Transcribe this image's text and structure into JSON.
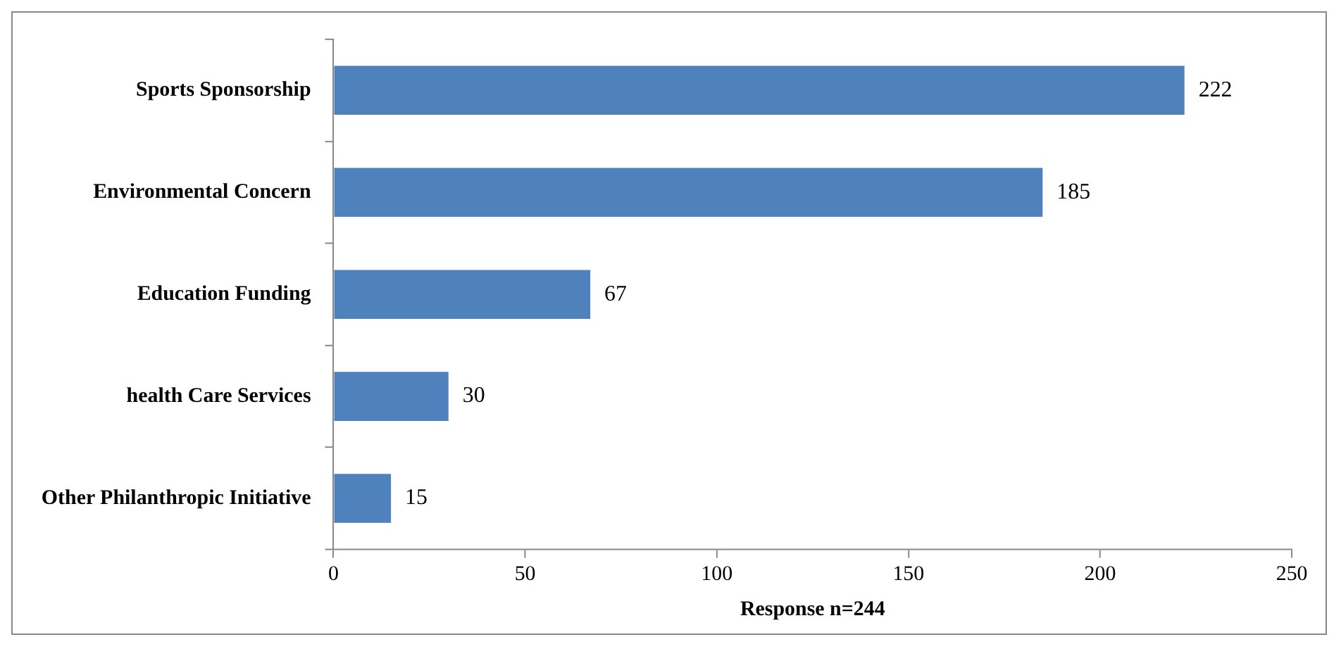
{
  "chart_data": {
    "type": "bar",
    "orientation": "horizontal",
    "xlabel": "Response n=244",
    "categories": [
      "Sports Sponsorship",
      "Environmental Concern",
      "Education Funding",
      "health Care Services",
      "Other Philanthropic Initiative"
    ],
    "values": [
      222,
      185,
      67,
      30,
      15
    ],
    "color": "#4f81bd",
    "xlim": [
      0,
      250
    ],
    "xticks": [
      0,
      50,
      100,
      150,
      200,
      250
    ],
    "grid": false,
    "data_labels": true,
    "legend": false
  }
}
